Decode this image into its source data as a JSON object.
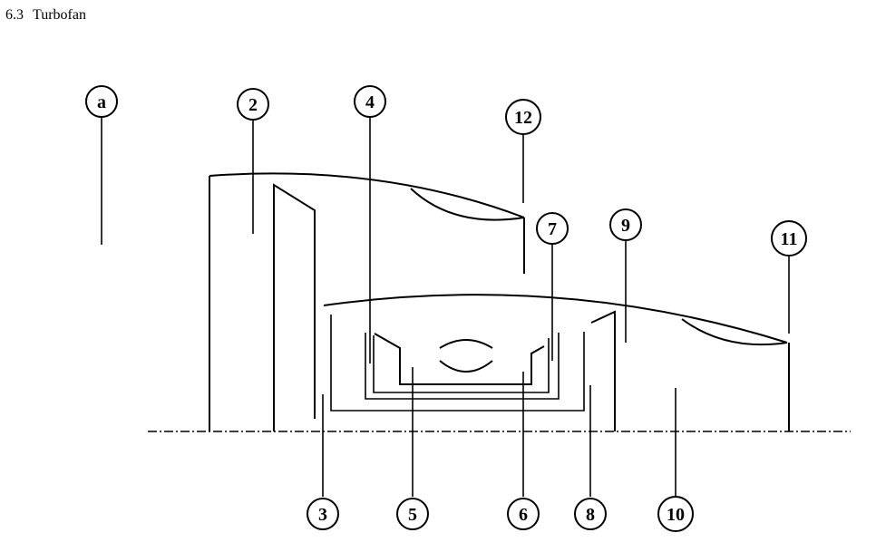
{
  "section": {
    "number": "6.3",
    "title": "Turbofan"
  },
  "station_labels": {
    "a": "a",
    "s2": "2",
    "s3": "3",
    "s4": "4",
    "s5": "5",
    "s6": "6",
    "s7": "7",
    "s8": "8",
    "s9": "9",
    "s10": "10",
    "s11": "11",
    "s12": "12"
  }
}
